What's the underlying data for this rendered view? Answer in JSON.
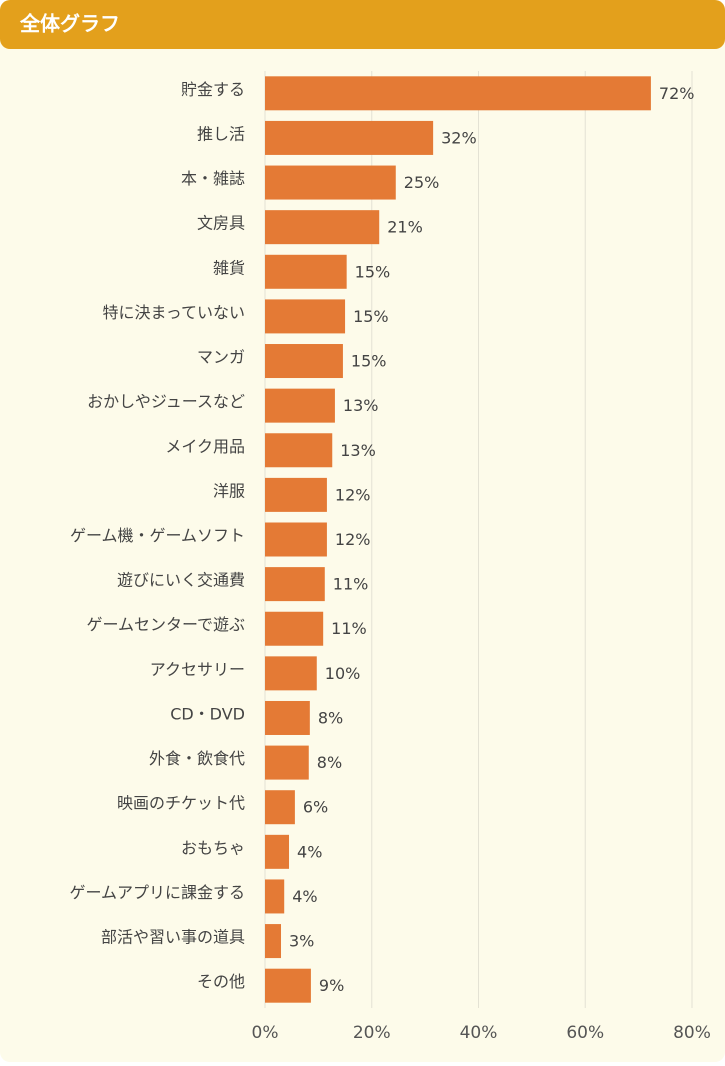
{
  "chart_data": {
    "type": "bar",
    "orientation": "horizontal",
    "title": "全体グラフ",
    "categories": [
      "貯金する",
      "推し活",
      "本・雑誌",
      "文房具",
      "雑貨",
      "特に決まっていない",
      "マンガ",
      "おかしやジュースなど",
      "メイク用品",
      "洋服",
      "ゲーム機・ゲームソフト",
      "遊びにいく交通費",
      "ゲームセンターで遊ぶ",
      "アクセサリー",
      "CD・DVD",
      "外食・飲食代",
      "映画のチケット代",
      "おもちゃ",
      "ゲームアプリに課金する",
      "部活や習い事の道具",
      "その他"
    ],
    "values": [
      72.3,
      31.5,
      24.5,
      21.4,
      15.3,
      15.0,
      14.6,
      13.1,
      12.6,
      11.6,
      11.6,
      11.2,
      10.9,
      9.7,
      8.4,
      8.2,
      5.6,
      4.5,
      3.6,
      3.0,
      8.6
    ],
    "value_labels": [
      "72%",
      "32%",
      "25%",
      "21%",
      "15%",
      "15%",
      "15%",
      "13%",
      "13%",
      "12%",
      "12%",
      "11%",
      "11%",
      "10%",
      "8%",
      "8%",
      "6%",
      "4%",
      "4%",
      "3%",
      "9%"
    ],
    "color": "#e47a35",
    "xlim": [
      0,
      80
    ],
    "xticks": [
      {
        "value": 0,
        "label": "0%"
      },
      {
        "value": 20,
        "label": "20%"
      },
      {
        "value": 40,
        "label": "40%"
      },
      {
        "value": 60,
        "label": "60%"
      },
      {
        "value": 80,
        "label": "80%"
      }
    ],
    "grid": true
  }
}
